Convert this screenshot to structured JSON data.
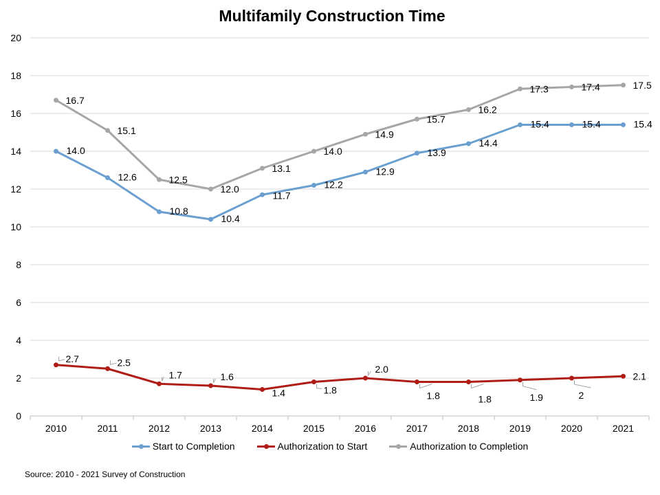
{
  "chart_data": {
    "type": "line",
    "title": "Multifamily Construction Time",
    "xlabel": "",
    "ylabel": "",
    "categories": [
      "2010",
      "2011",
      "2012",
      "2013",
      "2014",
      "2015",
      "2016",
      "2017",
      "2018",
      "2019",
      "2020",
      "2021"
    ],
    "y_ticks": [
      "0",
      "2",
      "4",
      "6",
      "8",
      "10",
      "12",
      "14",
      "16",
      "18",
      "20"
    ],
    "ylim": [
      0,
      20
    ],
    "grid": "horizontal",
    "legend_position": "bottom",
    "series": [
      {
        "name": "Start to Completion",
        "color": "#6a9fd0",
        "values": [
          14.0,
          12.6,
          10.8,
          10.4,
          11.7,
          12.2,
          12.9,
          13.9,
          14.4,
          15.4,
          15.4,
          15.4
        ],
        "labels": [
          "14.0",
          "12.6",
          "10.8",
          "10.4",
          "11.7",
          "12.2",
          "12.9",
          "13.9",
          "14.4",
          "15.4",
          "15.4",
          "15.4"
        ]
      },
      {
        "name": "Authorization to Start",
        "color": "#b01d17",
        "values": [
          2.7,
          2.5,
          1.7,
          1.6,
          1.4,
          1.8,
          2.0,
          1.8,
          1.8,
          1.9,
          2.0,
          2.1
        ],
        "labels": [
          "2.7",
          "2.5",
          "1.7",
          "1.6",
          "1.4",
          "1.8",
          "2.0",
          "1.8",
          "1.8",
          "1.9",
          "2",
          "2.1"
        ]
      },
      {
        "name": "Authorization to Completion",
        "color": "#a6a6a6",
        "values": [
          16.7,
          15.1,
          12.5,
          12.0,
          13.1,
          14.0,
          14.9,
          15.7,
          16.2,
          17.3,
          17.4,
          17.5
        ],
        "labels": [
          "16.7",
          "15.1",
          "12.5",
          "12.0",
          "13.1",
          "14.0",
          "14.9",
          "15.7",
          "16.2",
          "17.3",
          "17.4",
          "17.5"
        ]
      }
    ]
  },
  "source_note": "Source: 2010 - 2021 Survey of Construction"
}
